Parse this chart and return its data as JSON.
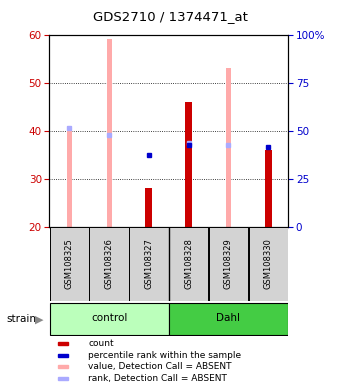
{
  "title": "GDS2710 / 1374471_at",
  "samples": [
    "GSM108325",
    "GSM108326",
    "GSM108327",
    "GSM108328",
    "GSM108329",
    "GSM108330"
  ],
  "ylim_left": [
    20,
    60
  ],
  "ylim_right": [
    0,
    100
  ],
  "yticks_left": [
    20,
    30,
    40,
    50,
    60
  ],
  "yticks_right": [
    0,
    25,
    50,
    75,
    100
  ],
  "yticklabels_right": [
    "0",
    "25",
    "50",
    "75",
    "100%"
  ],
  "red_bars": [
    null,
    null,
    28.0,
    46.0,
    null,
    36.0
  ],
  "pink_bars": [
    41.0,
    59.0,
    null,
    null,
    53.0,
    null
  ],
  "blue_dots": [
    null,
    null,
    35.0,
    37.0,
    null,
    36.5
  ],
  "light_blue_dots": [
    40.5,
    39.0,
    null,
    37.5,
    37.0,
    null
  ],
  "bar_bottom": 20,
  "pink_color": "#ffaaaa",
  "red_color": "#cc0000",
  "blue_color": "#0000cc",
  "light_blue_color": "#aaaaff",
  "label_color_left": "#cc0000",
  "label_color_right": "#0000cc",
  "legend_items": [
    {
      "label": "count",
      "color": "#cc0000"
    },
    {
      "label": "percentile rank within the sample",
      "color": "#0000cc"
    },
    {
      "label": "value, Detection Call = ABSENT",
      "color": "#ffaaaa"
    },
    {
      "label": "rank, Detection Call = ABSENT",
      "color": "#aaaaff"
    }
  ],
  "ctrl_color": "#bbffbb",
  "dahl_color": "#44cc44",
  "box_color": "#d3d3d3"
}
